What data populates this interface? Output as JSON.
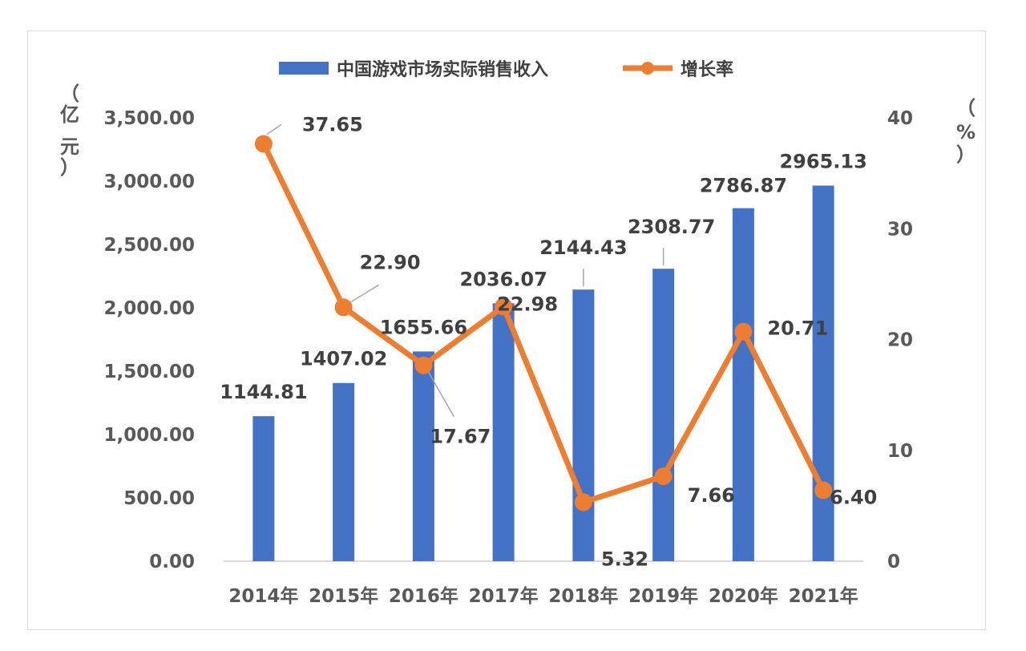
{
  "chart_data": {
    "type": "bar",
    "categories": [
      "2014年",
      "2015年",
      "2016年",
      "2017年",
      "2018年",
      "2019年",
      "2020年",
      "2021年"
    ],
    "series": [
      {
        "name": "中国游戏市场实际销售收入",
        "type": "bar",
        "axis": "left",
        "values": [
          1144.81,
          1407.02,
          1655.66,
          2036.07,
          2144.43,
          2308.77,
          2786.87,
          2965.13
        ],
        "labels": [
          "1144.81",
          "1407.02",
          "1655.66",
          "2036.07",
          "2144.43",
          "2308.77",
          "2786.87",
          "2965.13"
        ],
        "color": "#4472c4"
      },
      {
        "name": "增长率",
        "type": "line",
        "axis": "right",
        "values": [
          37.65,
          22.9,
          17.67,
          22.98,
          5.32,
          7.66,
          20.71,
          6.4
        ],
        "labels": [
          "37.65",
          "22.90",
          "17.67",
          "22.98",
          "5.32",
          "7.66",
          "20.71",
          "6.40"
        ],
        "color": "#ed7d31"
      }
    ],
    "y_left": {
      "range": [
        0,
        3500
      ],
      "ticks": [
        "0.00",
        "500.00",
        "1,000.00",
        "1,500.00",
        "2,000.00",
        "2,500.00",
        "3,000.00",
        "3,500.00"
      ],
      "unit_chars": [
        "（",
        "亿",
        "元",
        "）"
      ]
    },
    "y_right": {
      "range": [
        0,
        40
      ],
      "ticks": [
        "0",
        "10",
        "20",
        "30",
        "40"
      ],
      "unit_chars": [
        "（",
        "%",
        "）"
      ]
    },
    "legend_position": "top-center",
    "grid": false
  }
}
